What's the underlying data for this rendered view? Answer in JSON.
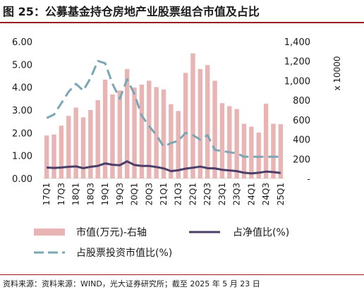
{
  "title": "图 25：公募基金持仓房地产业股票组合市值及占比",
  "source": "资料来源：资料来源：WIND，光大证券研究所；截至 2025 年 5 月 23 日",
  "colors": {
    "bar": "#e8b4b4",
    "line": "#4b3f69",
    "dash": "#7ba7b5"
  },
  "chart_data": {
    "type": "bar",
    "quarters": [
      "17Q1",
      "17Q2",
      "17Q3",
      "17Q4",
      "18Q1",
      "18Q2",
      "18Q3",
      "18Q4",
      "19Q1",
      "19Q2",
      "19Q3",
      "19Q4",
      "20Q1",
      "20Q2",
      "20Q3",
      "20Q4",
      "21Q1",
      "21Q2",
      "21Q3",
      "21Q4",
      "22Q1",
      "22Q2",
      "22Q3",
      "22Q4",
      "23Q1",
      "23Q2",
      "23Q3",
      "23Q4",
      "24Q1",
      "24Q2",
      "24Q3",
      "24Q4",
      "25Q1"
    ],
    "x_tick_labels": [
      "17Q1",
      "17Q3",
      "18Q1",
      "18Q3",
      "19Q1",
      "19Q3",
      "20Q1",
      "20Q3",
      "21Q1",
      "21Q3",
      "22Q1",
      "22Q3",
      "23Q1",
      "23Q3",
      "24Q1",
      "24Q3",
      "25Q1"
    ],
    "left_axis": {
      "min": 0,
      "max": 6,
      "ticks": [
        "0.00",
        "1.00",
        "2.00",
        "3.00",
        "4.00",
        "5.00",
        "6.00"
      ]
    },
    "right_axis": {
      "min": 0,
      "max": 1400,
      "ticks": [
        "-",
        "200",
        "400",
        "600",
        "800",
        "1,000",
        "1,200",
        "1,400"
      ],
      "unit": "x 10000"
    },
    "series": [
      {
        "name": "市值(万元)-右轴",
        "kind": "bar",
        "axis": "right",
        "values": [
          440,
          450,
          540,
          640,
          725,
          625,
          700,
          800,
          1010,
          860,
          900,
          1120,
          930,
          960,
          1000,
          935,
          910,
          760,
          690,
          1080,
          1280,
          1120,
          1160,
          1000,
          770,
          740,
          710,
          560,
          530,
          470,
          765,
          560,
          555
        ]
      },
      {
        "name": "占净值比(%)",
        "kind": "line",
        "axis": "left",
        "values": [
          0.48,
          0.46,
          0.48,
          0.51,
          0.53,
          0.45,
          0.51,
          0.55,
          0.66,
          0.6,
          0.58,
          0.75,
          0.59,
          0.55,
          0.55,
          0.5,
          0.44,
          0.32,
          0.36,
          0.43,
          0.47,
          0.52,
          0.45,
          0.44,
          0.38,
          0.35,
          0.32,
          0.25,
          0.22,
          0.25,
          0.3,
          0.28,
          0.24
        ]
      },
      {
        "name": "占股票投资市值比(%)",
        "kind": "dashed-line",
        "axis": "left",
        "values": [
          2.65,
          2.8,
          3.3,
          3.8,
          4.15,
          3.85,
          4.4,
          5.15,
          5.05,
          4.15,
          3.5,
          4.35,
          3.7,
          2.75,
          2.3,
          1.9,
          1.4,
          1.55,
          1.65,
          2.0,
          1.9,
          1.7,
          1.9,
          1.25,
          1.2,
          1.15,
          1.1,
          0.95,
          0.95,
          0.95,
          0.95,
          0.95,
          0.95
        ]
      }
    ],
    "legend": [
      "市值(万元)-右轴",
      "占净值比(%)",
      "占股票投资市值比(%)"
    ],
    "legend_position": "bottom"
  }
}
